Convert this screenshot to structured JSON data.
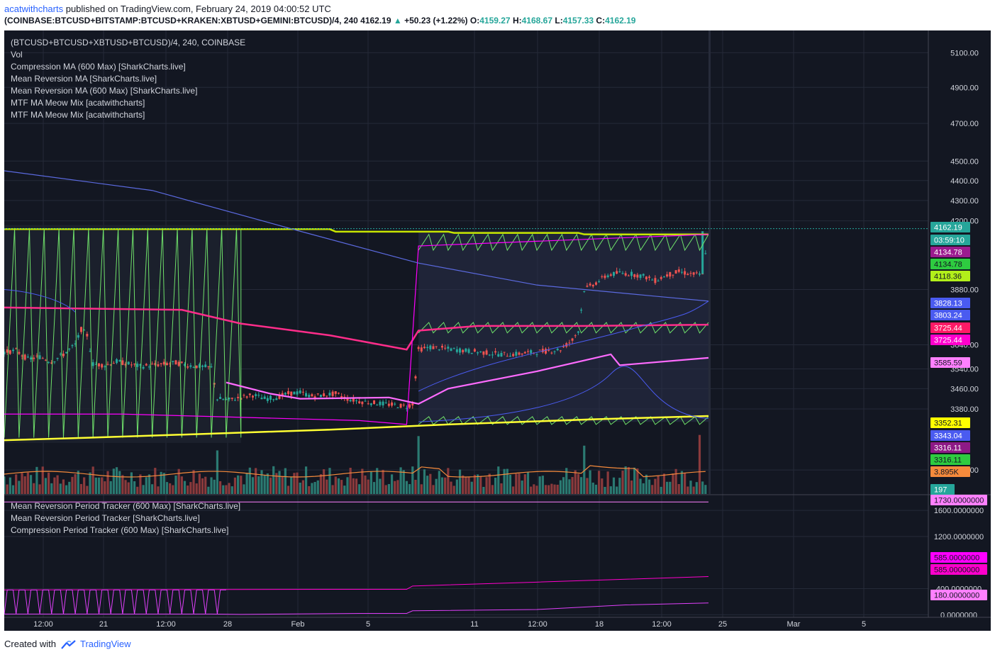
{
  "header": {
    "author": "acatwithcharts",
    "published_text": "published on TradingView.com, February 24, 2019 04:00:52 UTC",
    "symbol": "(COINBASE:BTCUSD+BITSTAMP:BTCUSD+KRAKEN:XBTUSD+GEMINI:BTCUSD)/4, 240",
    "last": "4162.19",
    "change": "+50.23 (+1.22%)",
    "o_label": "O:",
    "o_value": "4159.27",
    "h_label": "H:",
    "h_value": "4168.67",
    "l_label": "L:",
    "l_value": "4157.33",
    "c_label": "C:",
    "c_value": "4162.19"
  },
  "main_legend": [
    "(BTCUSD+BTCUSD+XBTUSD+BTCUSD)/4, 240, COINBASE",
    "Vol",
    "Compression MA (600 Max) [SharkCharts.live]",
    "Mean Reversion MA [SharkCharts.live]",
    "Mean Reversion MA (600 Max) [SharkCharts.live]",
    "MTF MA Meow Mix [acatwithcharts]",
    "MTF MA Meow Mix [acatwithcharts]"
  ],
  "lower_legend": [
    "Mean Reversion Period Tracker (600 Max) [SharkCharts.live]",
    "Mean Reversion Period Tracker [SharkCharts.live]",
    "Compression Period Tracker (600 Max) [SharkCharts.live]"
  ],
  "footer": {
    "created_with": "Created with",
    "brand": "TradingView"
  },
  "colors": {
    "background": "#131722",
    "up": "#26a69a",
    "down": "#ef5350",
    "compression": "#c8e600",
    "sawtooth": "#6fe06a",
    "magenta": "#ff00ff",
    "pink": "#ff2d8a",
    "violet": "#ff6bff",
    "blue": "#5b6ae0",
    "purple": "#9c27b0",
    "yellow": "#ffff33",
    "volume_ma": "#f58a3c"
  },
  "chart_data": [
    {
      "type": "candlestick",
      "title": "(BTCUSD+BTCUSD+XBTUSD+BTCUSD)/4, 240, COINBASE",
      "timeframe": "240",
      "x_ticks": [
        "12:00",
        "21",
        "12:00",
        "28",
        "Feb",
        "5",
        "11",
        "12:00",
        "18",
        "12:00",
        "25",
        "Mar",
        "5"
      ],
      "y_ticks": [
        5100,
        4900,
        4700,
        4500,
        4400,
        4300,
        4200,
        3880,
        3640,
        3540,
        3460,
        3380,
        3150
      ],
      "y_tick_labels": [
        "5100.00",
        "4900.00",
        "4700.00",
        "4500.00",
        "4400.00",
        "4300.00",
        "4200.00",
        "3880.00",
        "3640.00",
        "3540.00",
        "3460.00",
        "3380.00",
        "3150.00"
      ],
      "ylim": [
        3140,
        5190
      ],
      "y_scale": "log",
      "last_price": 4162.19,
      "countdown": "03:59:10",
      "price_series": [
        [
          0,
          3610
        ],
        [
          4,
          3615
        ],
        [
          8,
          3580
        ],
        [
          12,
          3590
        ],
        [
          16,
          3570
        ],
        [
          20,
          3600
        ],
        [
          24,
          3640
        ],
        [
          26,
          3705
        ],
        [
          28,
          3680
        ],
        [
          30,
          3560
        ],
        [
          34,
          3555
        ],
        [
          38,
          3570
        ],
        [
          42,
          3560
        ],
        [
          46,
          3550
        ],
        [
          50,
          3555
        ],
        [
          54,
          3560
        ],
        [
          58,
          3565
        ],
        [
          62,
          3555
        ],
        [
          66,
          3550
        ],
        [
          70,
          3545
        ],
        [
          72,
          3420
        ],
        [
          76,
          3415
        ],
        [
          80,
          3425
        ],
        [
          84,
          3435
        ],
        [
          88,
          3420
        ],
        [
          92,
          3425
        ],
        [
          96,
          3440
        ],
        [
          100,
          3445
        ],
        [
          104,
          3430
        ],
        [
          108,
          3435
        ],
        [
          112,
          3440
        ],
        [
          116,
          3420
        ],
        [
          120,
          3410
        ],
        [
          124,
          3405
        ],
        [
          128,
          3400
        ],
        [
          132,
          3395
        ],
        [
          136,
          3390
        ],
        [
          138,
          3400
        ],
        [
          140,
          3620
        ],
        [
          144,
          3630
        ],
        [
          148,
          3625
        ],
        [
          152,
          3620
        ],
        [
          156,
          3615
        ],
        [
          160,
          3610
        ],
        [
          164,
          3605
        ],
        [
          168,
          3600
        ],
        [
          172,
          3600
        ],
        [
          176,
          3605
        ],
        [
          180,
          3610
        ],
        [
          184,
          3615
        ],
        [
          188,
          3620
        ],
        [
          190,
          3640
        ],
        [
          192,
          3660
        ],
        [
          194,
          3700
        ],
        [
          196,
          3880
        ],
        [
          200,
          3910
        ],
        [
          204,
          3945
        ],
        [
          208,
          3955
        ],
        [
          212,
          3950
        ],
        [
          216,
          3940
        ],
        [
          220,
          3920
        ],
        [
          224,
          3945
        ],
        [
          228,
          3960
        ],
        [
          232,
          3950
        ],
        [
          236,
          3945
        ],
        [
          238,
          4162.19
        ]
      ],
      "series": [
        {
          "name": "Compression MA (600 Max) [SharkCharts.live]",
          "color": "#c8e600",
          "points": [
            [
              0,
              4160
            ],
            [
              110,
              4160
            ],
            [
              112,
              4148
            ],
            [
              150,
              4148
            ],
            [
              152,
              4142
            ],
            [
              194,
              4142
            ],
            [
              196,
              4135
            ],
            [
              238,
              4134.78
            ]
          ]
        },
        {
          "name": "Mean Reversion MA [SharkCharts.live]",
          "color": "#ff2d8a",
          "points": [
            [
              0,
              3800
            ],
            [
              60,
              3790
            ],
            [
              80,
              3730
            ],
            [
              110,
              3680
            ],
            [
              136,
              3620
            ],
            [
              140,
              3700
            ],
            [
              160,
              3720
            ],
            [
              196,
              3720
            ],
            [
              238,
              3725.44
            ]
          ]
        },
        {
          "name": "Mean Reversion MA (600 Max) [SharkCharts.live]",
          "color": "#ff00ff",
          "points": [
            [
              0,
              3360
            ],
            [
              40,
              3360
            ],
            [
              72,
              3350
            ],
            [
              120,
              3335
            ],
            [
              136,
              3320
            ],
            [
              140,
              4080
            ],
            [
              238,
              4134.78
            ]
          ]
        },
        {
          "name": "MTF MA Meow Mix [acatwithcharts]",
          "color": "#5b6ae0",
          "points": [
            [
              0,
              4450
            ],
            [
              50,
              4350
            ],
            [
              100,
              4150
            ],
            [
              140,
              4000
            ],
            [
              180,
              3900
            ],
            [
              220,
              3850
            ],
            [
              238,
              3828.13
            ]
          ]
        },
        {
          "name": "MTF MA Meow Mix [acatwithcharts]",
          "color": "#ffff33",
          "points": [
            [
              0,
              3260
            ],
            [
              30,
              3270
            ],
            [
              70,
              3285
            ],
            [
              110,
              3300
            ],
            [
              150,
              3320
            ],
            [
              200,
              3340
            ],
            [
              238,
              3352.31
            ]
          ]
        },
        {
          "name": "MTF MA Meow Mix [acatwithcharts]",
          "color": "#ff6bff",
          "points": [
            [
              75,
              3485
            ],
            [
              90,
              3440
            ],
            [
              100,
              3420
            ],
            [
              130,
              3425
            ],
            [
              140,
              3400
            ],
            [
              150,
              3460
            ],
            [
              180,
              3530
            ],
            [
              205,
              3600
            ],
            [
              208,
              3555
            ],
            [
              238,
              3585.59
            ]
          ]
        }
      ],
      "price_labels": [
        {
          "value": "4162.19",
          "color": "#26a69a"
        },
        {
          "value": "03:59:10",
          "color": "#26a69a"
        },
        {
          "value": "4134.78",
          "color": "#9c1b8f"
        },
        {
          "value": "4134.78",
          "color": "#2ecc40"
        },
        {
          "value": "4118.36",
          "color": "#b2ef1a"
        },
        {
          "value": "3828.13",
          "color": "#4a5bf0"
        },
        {
          "value": "3803.24",
          "color": "#4a5bf0"
        },
        {
          "value": "3725.44",
          "color": "#ff1a66"
        },
        {
          "value": "3725.44",
          "color": "#ff00cc"
        },
        {
          "value": "3585.59",
          "color": "#ff80ff"
        },
        {
          "value": "3352.31",
          "color": "#ffff00"
        },
        {
          "value": "3343.04",
          "color": "#4a5bf0"
        },
        {
          "value": "3316.11",
          "color": "#8e1a86"
        },
        {
          "value": "3316.11",
          "color": "#2ecc40"
        },
        {
          "value": "3.895K",
          "color": "#f58a3c"
        },
        {
          "value": "197",
          "color": "#26a69a"
        }
      ]
    },
    {
      "type": "line",
      "title": "Mean Reversion Period Tracker (600 Max) [SharkCharts.live]",
      "y_ticks": [
        1600,
        1200,
        400,
        0
      ],
      "y_tick_labels": [
        "1600.0000000",
        "1200.0000000",
        "400.0000000",
        "0.0000000"
      ],
      "ylim": [
        -40,
        1830
      ],
      "series": [
        {
          "name": "Mean Reversion Period Tracker (600 Max) [SharkCharts.live]",
          "color": "#ff80ff",
          "points": [
            [
              0,
              1730
            ],
            [
              238,
              1730
            ]
          ]
        },
        {
          "name": "Mean Reversion Period Tracker [SharkCharts.live]",
          "color": "#ff00cc",
          "points": [
            [
              0,
              380
            ],
            [
              60,
              385
            ],
            [
              110,
              390
            ],
            [
              136,
              390
            ],
            [
              138,
              440
            ],
            [
              180,
              500
            ],
            [
              238,
              585
            ]
          ]
        },
        {
          "name": "Compression Period Tracker (600 Max) [SharkCharts.live]",
          "color": "#e040fb",
          "points": [
            [
              0,
              10
            ],
            [
              70,
              10
            ],
            [
              80,
              5
            ],
            [
              120,
              20
            ],
            [
              136,
              20
            ],
            [
              138,
              60
            ],
            [
              180,
              80
            ],
            [
              210,
              150
            ],
            [
              238,
              180
            ]
          ]
        }
      ],
      "price_labels": [
        {
          "value": "1730.0000000",
          "color": "#ff80ff"
        },
        {
          "value": "585.0000000",
          "color": "#ff00ff"
        },
        {
          "value": "585.0000000",
          "color": "#ff00cc"
        },
        {
          "value": "180.0000000",
          "color": "#ff80ff"
        }
      ]
    }
  ]
}
